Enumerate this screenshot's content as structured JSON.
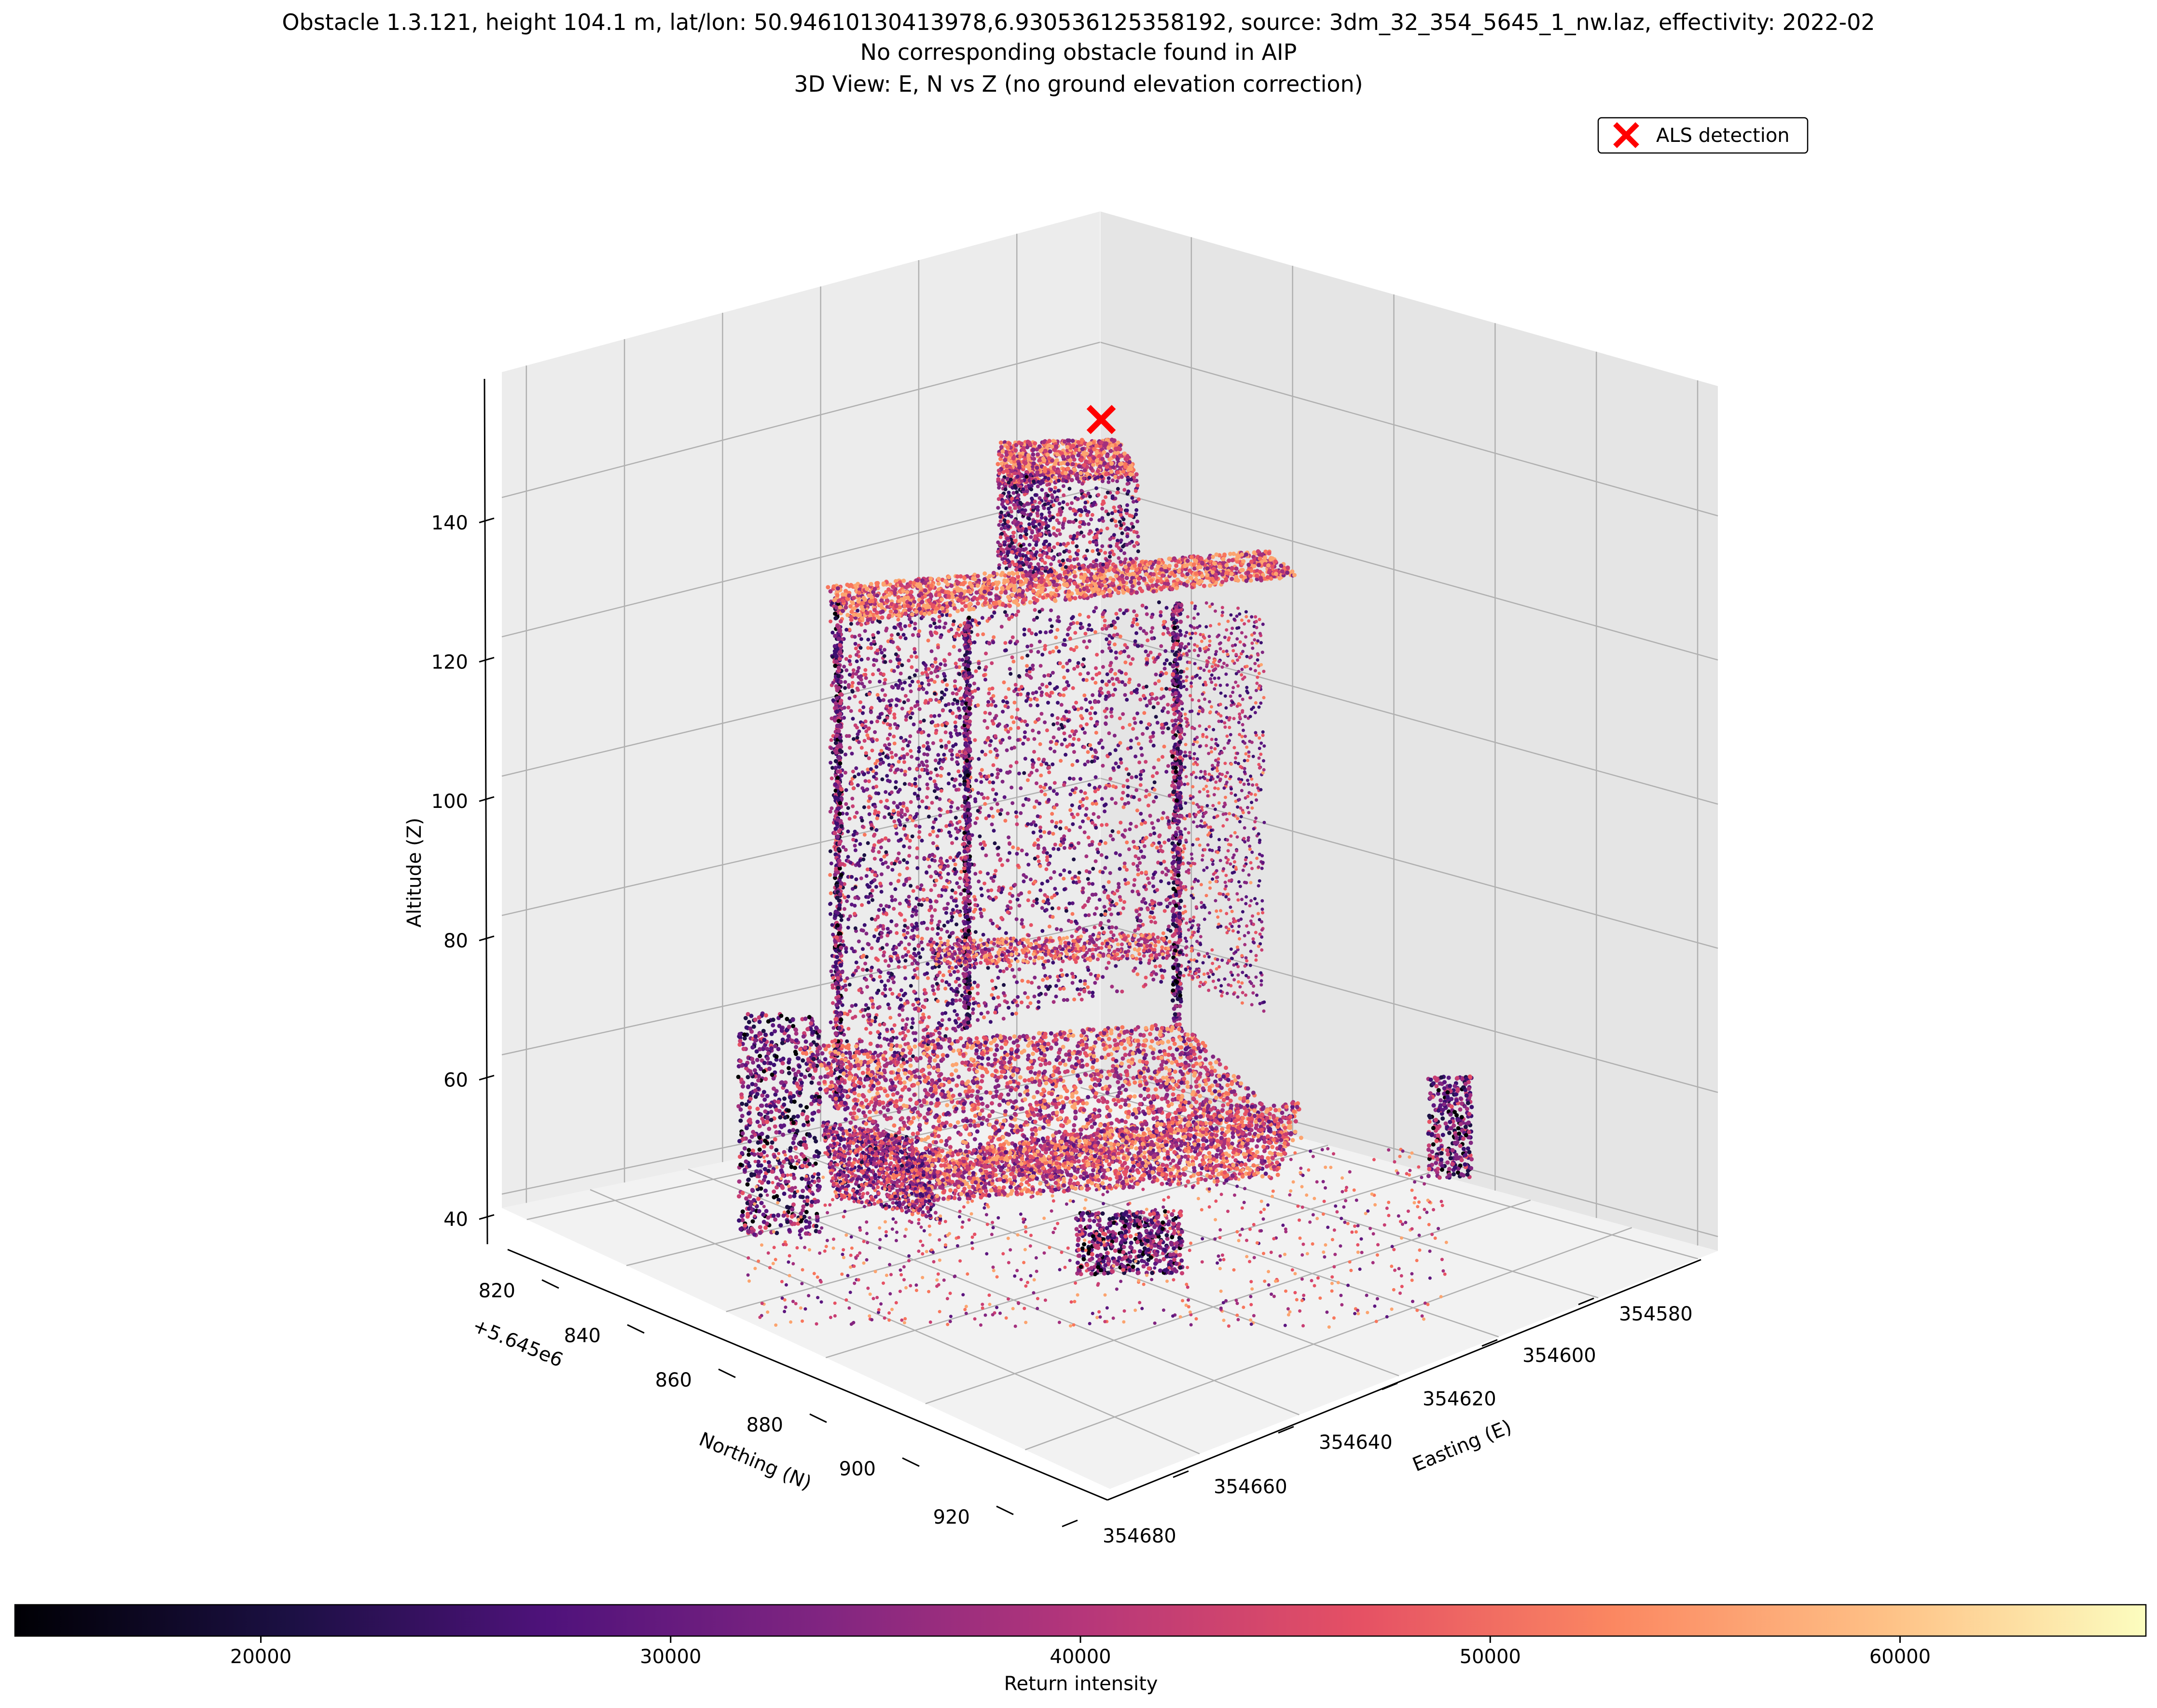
{
  "figure": {
    "title_lines": [
      "Obstacle 1.3.121, height 104.1 m, lat/lon: 50.94610130413978,6.930536125358192, source: 3dm_32_354_5645_1_nw.laz, effectivity: 2022-02",
      "No corresponding obstacle found in AIP",
      "3D View: E, N vs Z (no ground elevation correction)"
    ]
  },
  "chart_data": {
    "type": "scatter",
    "projection": "3d",
    "axes": {
      "x": {
        "label": "Easting (E)",
        "ticks": [
          "354580",
          "354600",
          "354620",
          "354640",
          "354660",
          "354680"
        ]
      },
      "y": {
        "label": "Northing (N)",
        "offset_label": "+5.645e6",
        "ticks": [
          "820",
          "840",
          "860",
          "880",
          "900",
          "920"
        ]
      },
      "z": {
        "label": "Altitude (Z)",
        "ticks": [
          "40",
          "60",
          "80",
          "100",
          "120",
          "140"
        ],
        "range": [
          38,
          158
        ]
      }
    },
    "grid": true,
    "legend": {
      "placement": "top-right",
      "entries": [
        {
          "label": "ALS detection",
          "marker": "x",
          "color": "#ff0000"
        }
      ]
    },
    "detection": {
      "z": 155
    },
    "colorbar": {
      "label": "Return intensity",
      "range": [
        14000,
        66000
      ],
      "ticks": [
        "20000",
        "30000",
        "40000",
        "50000",
        "60000"
      ],
      "colormap": "magma"
    },
    "colors": [
      "#000004",
      "#3b0f70",
      "#8c2981",
      "#de4968",
      "#fe9f6d",
      "#fcfdbf"
    ],
    "series": [
      {
        "note_points": "dense point cloud of a tall building with a rooftop structure and a wide podium"
      }
    ]
  }
}
